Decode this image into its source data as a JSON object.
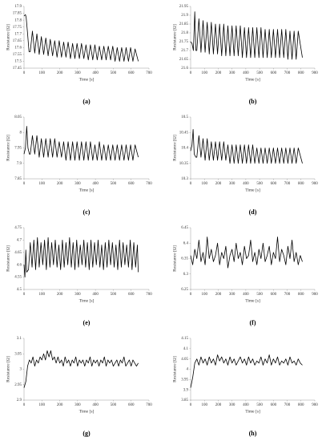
{
  "chart_data": [
    {
      "type": "line",
      "caption": "(a)",
      "x_label": "Time [s]",
      "y_label": "Resistance [Ω]",
      "color": "#000000",
      "xlim": [
        0,
        700
      ],
      "xticks": [
        0,
        100,
        200,
        300,
        400,
        500,
        600,
        700
      ],
      "ylim": [
        17.45,
        17.9
      ],
      "yticks": [
        17.45,
        17.5,
        17.55,
        17.6,
        17.65,
        17.7,
        17.75,
        17.8,
        17.85,
        17.9
      ],
      "x": [
        0,
        8,
        12,
        20,
        28,
        35,
        47,
        60,
        72,
        85,
        97,
        110,
        122,
        135,
        147,
        160,
        172,
        185,
        197,
        210,
        222,
        235,
        247,
        260,
        272,
        285,
        297,
        310,
        322,
        335,
        347,
        360,
        372,
        385,
        397,
        410,
        422,
        435,
        447,
        460,
        472,
        485,
        497,
        510,
        522,
        535,
        547,
        560,
        572,
        585,
        597,
        610,
        622,
        640
      ],
      "values": [
        17.83,
        17.84,
        17.82,
        17.7,
        17.57,
        17.57,
        17.72,
        17.56,
        17.7,
        17.55,
        17.68,
        17.55,
        17.67,
        17.54,
        17.66,
        17.54,
        17.65,
        17.53,
        17.65,
        17.53,
        17.64,
        17.53,
        17.64,
        17.52,
        17.63,
        17.52,
        17.63,
        17.52,
        17.63,
        17.52,
        17.62,
        17.51,
        17.62,
        17.51,
        17.62,
        17.51,
        17.61,
        17.51,
        17.61,
        17.51,
        17.61,
        17.51,
        17.61,
        17.5,
        17.6,
        17.5,
        17.6,
        17.5,
        17.6,
        17.5,
        17.6,
        17.5,
        17.59,
        17.5
      ]
    },
    {
      "type": "line",
      "caption": "(b)",
      "x_label": "Time [s]",
      "y_label": "Resistance [Ω]",
      "color": "#000000",
      "xlim": [
        0,
        900
      ],
      "xticks": [
        0,
        100,
        200,
        300,
        400,
        500,
        600,
        700,
        800,
        900
      ],
      "ylim": [
        21.6,
        21.95
      ],
      "yticks": [
        21.6,
        21.65,
        21.7,
        21.75,
        21.8,
        21.85,
        21.9,
        21.95
      ],
      "x": [
        0,
        10,
        20,
        30,
        38,
        45,
        60,
        75,
        90,
        105,
        120,
        135,
        150,
        165,
        180,
        195,
        210,
        225,
        240,
        255,
        270,
        285,
        300,
        315,
        330,
        345,
        360,
        375,
        390,
        405,
        420,
        435,
        450,
        465,
        480,
        495,
        510,
        525,
        540,
        555,
        570,
        585,
        600,
        615,
        630,
        645,
        660,
        675,
        690,
        705,
        720,
        735,
        750,
        765,
        780,
        810
      ],
      "values": [
        21.75,
        21.74,
        21.7,
        21.92,
        21.7,
        21.7,
        21.88,
        21.69,
        21.87,
        21.69,
        21.86,
        21.68,
        21.86,
        21.68,
        21.85,
        21.68,
        21.85,
        21.67,
        21.85,
        21.67,
        21.84,
        21.67,
        21.84,
        21.67,
        21.84,
        21.67,
        21.84,
        21.66,
        21.83,
        21.66,
        21.83,
        21.66,
        21.83,
        21.66,
        21.83,
        21.66,
        21.83,
        21.66,
        21.82,
        21.66,
        21.82,
        21.66,
        21.82,
        21.66,
        21.82,
        21.66,
        21.82,
        21.66,
        21.82,
        21.65,
        21.81,
        21.65,
        21.81,
        21.65,
        21.81,
        21.66
      ]
    },
    {
      "type": "line",
      "caption": "(c)",
      "x_label": "Time [s]",
      "y_label": "Resistance [Ω]",
      "color": "#000000",
      "xlim": [
        0,
        700
      ],
      "xticks": [
        0,
        100,
        200,
        300,
        400,
        500,
        600,
        700
      ],
      "ylim": [
        7.85,
        8.05
      ],
      "yticks": [
        7.85,
        7.9,
        7.95,
        8,
        8.05
      ],
      "x": [
        0,
        8,
        15,
        22,
        30,
        35,
        47,
        60,
        72,
        85,
        97,
        110,
        122,
        135,
        147,
        160,
        172,
        185,
        197,
        210,
        222,
        235,
        247,
        260,
        272,
        285,
        297,
        310,
        322,
        335,
        347,
        360,
        372,
        385,
        397,
        410,
        422,
        435,
        447,
        460,
        472,
        485,
        497,
        510,
        522,
        535,
        547,
        560,
        572,
        585,
        597,
        610,
        622,
        640
      ],
      "values": [
        7.93,
        7.95,
        8.02,
        7.95,
        7.93,
        7.93,
        7.99,
        7.93,
        7.99,
        7.92,
        7.98,
        7.92,
        7.98,
        7.92,
        7.98,
        7.92,
        7.98,
        7.92,
        7.97,
        7.92,
        7.97,
        7.91,
        7.97,
        7.91,
        7.97,
        7.91,
        7.97,
        7.91,
        7.97,
        7.91,
        7.97,
        7.91,
        7.97,
        7.91,
        7.96,
        7.91,
        7.97,
        7.91,
        7.96,
        7.91,
        7.96,
        7.91,
        7.96,
        7.91,
        7.96,
        7.91,
        7.96,
        7.91,
        7.96,
        7.91,
        7.96,
        7.91,
        7.96,
        7.92
      ]
    },
    {
      "type": "line",
      "caption": "(d)",
      "x_label": "Time [s]",
      "y_label": "Resistance [Ω]",
      "color": "#000000",
      "xlim": [
        0,
        900
      ],
      "xticks": [
        0,
        100,
        200,
        300,
        400,
        500,
        600,
        700,
        800,
        900
      ],
      "ylim": [
        10.3,
        10.5
      ],
      "yticks": [
        10.3,
        10.35,
        10.4,
        10.45,
        10.5
      ],
      "x": [
        0,
        10,
        18,
        26,
        38,
        45,
        60,
        75,
        90,
        105,
        120,
        135,
        150,
        165,
        180,
        195,
        210,
        225,
        240,
        255,
        270,
        285,
        300,
        315,
        330,
        345,
        360,
        375,
        390,
        405,
        420,
        435,
        450,
        465,
        480,
        495,
        510,
        525,
        540,
        555,
        570,
        585,
        600,
        615,
        630,
        645,
        660,
        675,
        690,
        705,
        720,
        735,
        750,
        765,
        780,
        810
      ],
      "values": [
        10.39,
        10.41,
        10.46,
        10.38,
        10.37,
        10.37,
        10.44,
        10.37,
        10.43,
        10.36,
        10.43,
        10.36,
        10.42,
        10.36,
        10.42,
        10.36,
        10.42,
        10.36,
        10.42,
        10.36,
        10.41,
        10.35,
        10.41,
        10.35,
        10.41,
        10.35,
        10.41,
        10.35,
        10.41,
        10.35,
        10.41,
        10.35,
        10.41,
        10.35,
        10.4,
        10.35,
        10.4,
        10.35,
        10.4,
        10.35,
        10.4,
        10.35,
        10.4,
        10.35,
        10.4,
        10.35,
        10.4,
        10.35,
        10.4,
        10.35,
        10.4,
        10.35,
        10.4,
        10.35,
        10.4,
        10.35
      ]
    },
    {
      "type": "line",
      "caption": "(e)",
      "x_label": "Time [s]",
      "y_label": "Resistance [Ω]",
      "color": "#000000",
      "xlim": [
        0,
        700
      ],
      "xticks": [
        0,
        100,
        200,
        300,
        400,
        500,
        600,
        700
      ],
      "ylim": [
        4.5,
        4.75
      ],
      "yticks": [
        4.5,
        4.55,
        4.6,
        4.65,
        4.7,
        4.75
      ],
      "x": [
        0,
        5,
        10,
        15,
        25,
        35,
        45,
        55,
        65,
        75,
        85,
        95,
        105,
        115,
        125,
        135,
        145,
        155,
        165,
        175,
        185,
        195,
        205,
        215,
        225,
        235,
        245,
        255,
        265,
        275,
        285,
        295,
        305,
        315,
        325,
        335,
        345,
        355,
        365,
        375,
        385,
        395,
        405,
        415,
        425,
        435,
        445,
        455,
        465,
        475,
        485,
        495,
        505,
        515,
        525,
        535,
        545,
        555,
        565,
        575,
        585,
        595,
        605,
        615,
        625,
        635,
        640
      ],
      "values": [
        4.6,
        4.55,
        4.66,
        4.57,
        4.58,
        4.69,
        4.59,
        4.7,
        4.58,
        4.71,
        4.59,
        4.69,
        4.6,
        4.7,
        4.58,
        4.71,
        4.59,
        4.69,
        4.6,
        4.7,
        4.59,
        4.68,
        4.58,
        4.7,
        4.59,
        4.69,
        4.6,
        4.71,
        4.59,
        4.69,
        4.58,
        4.7,
        4.59,
        4.68,
        4.6,
        4.7,
        4.59,
        4.69,
        4.58,
        4.7,
        4.59,
        4.69,
        4.6,
        4.7,
        4.59,
        4.68,
        4.58,
        4.69,
        4.59,
        4.7,
        4.6,
        4.69,
        4.59,
        4.68,
        4.58,
        4.7,
        4.59,
        4.69,
        4.6,
        4.68,
        4.59,
        4.7,
        4.58,
        4.69,
        4.59,
        4.68,
        4.57
      ]
    },
    {
      "type": "line",
      "caption": "(f)",
      "x_label": "Time [s]",
      "y_label": "Resistance [Ω]",
      "color": "#000000",
      "xlim": [
        0,
        900
      ],
      "xticks": [
        0,
        100,
        200,
        300,
        400,
        500,
        600,
        700,
        800,
        900
      ],
      "ylim": [
        6.25,
        6.45
      ],
      "yticks": [
        6.25,
        6.3,
        6.35,
        6.4,
        6.45
      ],
      "x": [
        0,
        15,
        30,
        45,
        60,
        75,
        90,
        105,
        120,
        135,
        150,
        165,
        180,
        195,
        210,
        225,
        240,
        255,
        270,
        285,
        300,
        315,
        330,
        345,
        360,
        375,
        390,
        405,
        420,
        435,
        450,
        465,
        480,
        495,
        510,
        525,
        540,
        555,
        570,
        585,
        600,
        615,
        630,
        645,
        660,
        675,
        690,
        705,
        720,
        735,
        750,
        765,
        780,
        795,
        810
      ],
      "values": [
        6.36,
        6.33,
        6.38,
        6.35,
        6.41,
        6.34,
        6.37,
        6.33,
        6.42,
        6.35,
        6.38,
        6.34,
        6.36,
        6.4,
        6.33,
        6.37,
        6.35,
        6.39,
        6.32,
        6.36,
        6.38,
        6.34,
        6.4,
        6.35,
        6.37,
        6.33,
        6.39,
        6.35,
        6.36,
        6.41,
        6.34,
        6.37,
        6.33,
        6.38,
        6.35,
        6.4,
        6.34,
        6.36,
        6.39,
        6.33,
        6.37,
        6.35,
        6.42,
        6.34,
        6.38,
        6.36,
        6.33,
        6.39,
        6.35,
        6.41,
        6.34,
        6.37,
        6.33,
        6.36,
        6.34
      ]
    },
    {
      "type": "line",
      "caption": "(g)",
      "x_label": "Time [s]",
      "y_label": "Resistance [Ω]",
      "color": "#000000",
      "xlim": [
        0,
        700
      ],
      "xticks": [
        0,
        100,
        200,
        300,
        400,
        500,
        600,
        700
      ],
      "ylim": [
        2.9,
        3.1
      ],
      "yticks": [
        2.9,
        2.95,
        3,
        3.05,
        3.1
      ],
      "x": [
        0,
        10,
        20,
        30,
        40,
        50,
        60,
        70,
        80,
        90,
        100,
        110,
        120,
        130,
        140,
        150,
        160,
        170,
        180,
        190,
        200,
        210,
        220,
        230,
        240,
        250,
        260,
        270,
        280,
        290,
        300,
        310,
        320,
        330,
        340,
        350,
        360,
        370,
        380,
        390,
        400,
        410,
        420,
        430,
        440,
        450,
        460,
        470,
        480,
        490,
        500,
        510,
        520,
        530,
        540,
        550,
        560,
        570,
        580,
        590,
        600,
        610,
        620,
        630,
        640
      ],
      "values": [
        2.94,
        2.96,
        3.01,
        3.03,
        3.02,
        3.04,
        3.01,
        3.03,
        3.02,
        3.04,
        3.03,
        3.05,
        3.03,
        3.06,
        3.04,
        3.06,
        3.03,
        3.04,
        3.02,
        3.04,
        3.02,
        3.03,
        3.01,
        3.04,
        3.02,
        3.03,
        3.01,
        3.03,
        3.02,
        3.04,
        3.01,
        3.03,
        3.02,
        3.03,
        3.01,
        3.03,
        3.02,
        3.04,
        3.01,
        3.03,
        3.02,
        3.03,
        3.01,
        3.03,
        3.02,
        3.04,
        3.01,
        3.03,
        3.02,
        3.03,
        3.01,
        3.02,
        3.03,
        3.01,
        3.03,
        3.02,
        3.04,
        3.01,
        3.02,
        3.03,
        3.01,
        3.03,
        3.02,
        3.01,
        3.02
      ]
    },
    {
      "type": "line",
      "caption": "(h)",
      "x_label": "Time [s]",
      "y_label": "Resistance [Ω]",
      "color": "#000000",
      "xlim": [
        0,
        900
      ],
      "xticks": [
        0,
        100,
        200,
        300,
        400,
        500,
        600,
        700,
        800,
        900
      ],
      "ylim": [
        3.85,
        4.15
      ],
      "yticks": [
        3.85,
        3.9,
        3.95,
        4,
        4.05,
        4.1,
        4.15
      ],
      "x": [
        0,
        15,
        30,
        45,
        60,
        75,
        90,
        105,
        120,
        135,
        150,
        165,
        180,
        195,
        210,
        225,
        240,
        255,
        270,
        285,
        300,
        315,
        330,
        345,
        360,
        375,
        390,
        405,
        420,
        435,
        450,
        465,
        480,
        495,
        510,
        525,
        540,
        555,
        570,
        585,
        600,
        615,
        630,
        645,
        660,
        675,
        690,
        705,
        720,
        735,
        750,
        765,
        780,
        795,
        810
      ],
      "values": [
        3.91,
        3.96,
        4.03,
        4.05,
        4.02,
        4.06,
        4.03,
        4.05,
        4.02,
        4.06,
        4.03,
        4.05,
        4.02,
        4.07,
        4.04,
        4.06,
        4.03,
        4.05,
        4.02,
        4.06,
        4.03,
        4.05,
        4.02,
        4.04,
        4.06,
        4.03,
        4.05,
        4.02,
        4.06,
        4.03,
        4.05,
        4.02,
        4.04,
        4.03,
        4.06,
        4.02,
        4.05,
        4.03,
        4.07,
        4.02,
        4.05,
        4.03,
        4.06,
        4.02,
        4.04,
        4.03,
        4.05,
        4.02,
        4.06,
        4.03,
        4.04,
        4.02,
        4.05,
        4.03,
        4.02
      ]
    }
  ]
}
